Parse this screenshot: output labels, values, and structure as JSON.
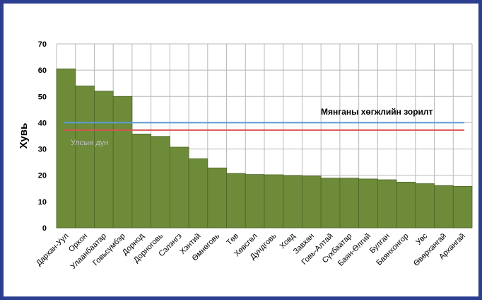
{
  "chart_data": {
    "type": "bar",
    "title": "",
    "xlabel": "",
    "ylabel": "Хувь",
    "ylim": [
      0,
      70
    ],
    "yticks": [
      0,
      10,
      20,
      30,
      40,
      50,
      60,
      70
    ],
    "grid": true,
    "categories": [
      "Дархан-Уул",
      "Орхон",
      "Улаанбаатар",
      "Говьсүмбэр",
      "Дорнод",
      "Дорноговь",
      "Сэлэнгэ",
      "Хэнтий",
      "Өмнөговь",
      "Төв",
      "Хөвсгөл",
      "Дундговь",
      "Ховд",
      "Завхан",
      "Говь-Алтай",
      "Сүхбаатар",
      "Баян-Өлгий",
      "Булган",
      "Баянхонгор",
      "Увс",
      "Өвөрхангай",
      "Архангай"
    ],
    "values": [
      60.5,
      54,
      52,
      50,
      35.7,
      34.8,
      30.7,
      26.3,
      22.8,
      20.7,
      20.3,
      20.2,
      19.9,
      19.7,
      18.9,
      18.9,
      18.6,
      18.3,
      17.4,
      16.8,
      16.1,
      15.8
    ],
    "bar_color": "#6d8b39",
    "reference_lines": [
      {
        "label": "Мянганы хөгжлийн зорилт",
        "value": 40,
        "color": "#5b9bd5"
      },
      {
        "label": "Улсын дүн",
        "value": 37.2,
        "color": "#d9534f"
      }
    ]
  }
}
